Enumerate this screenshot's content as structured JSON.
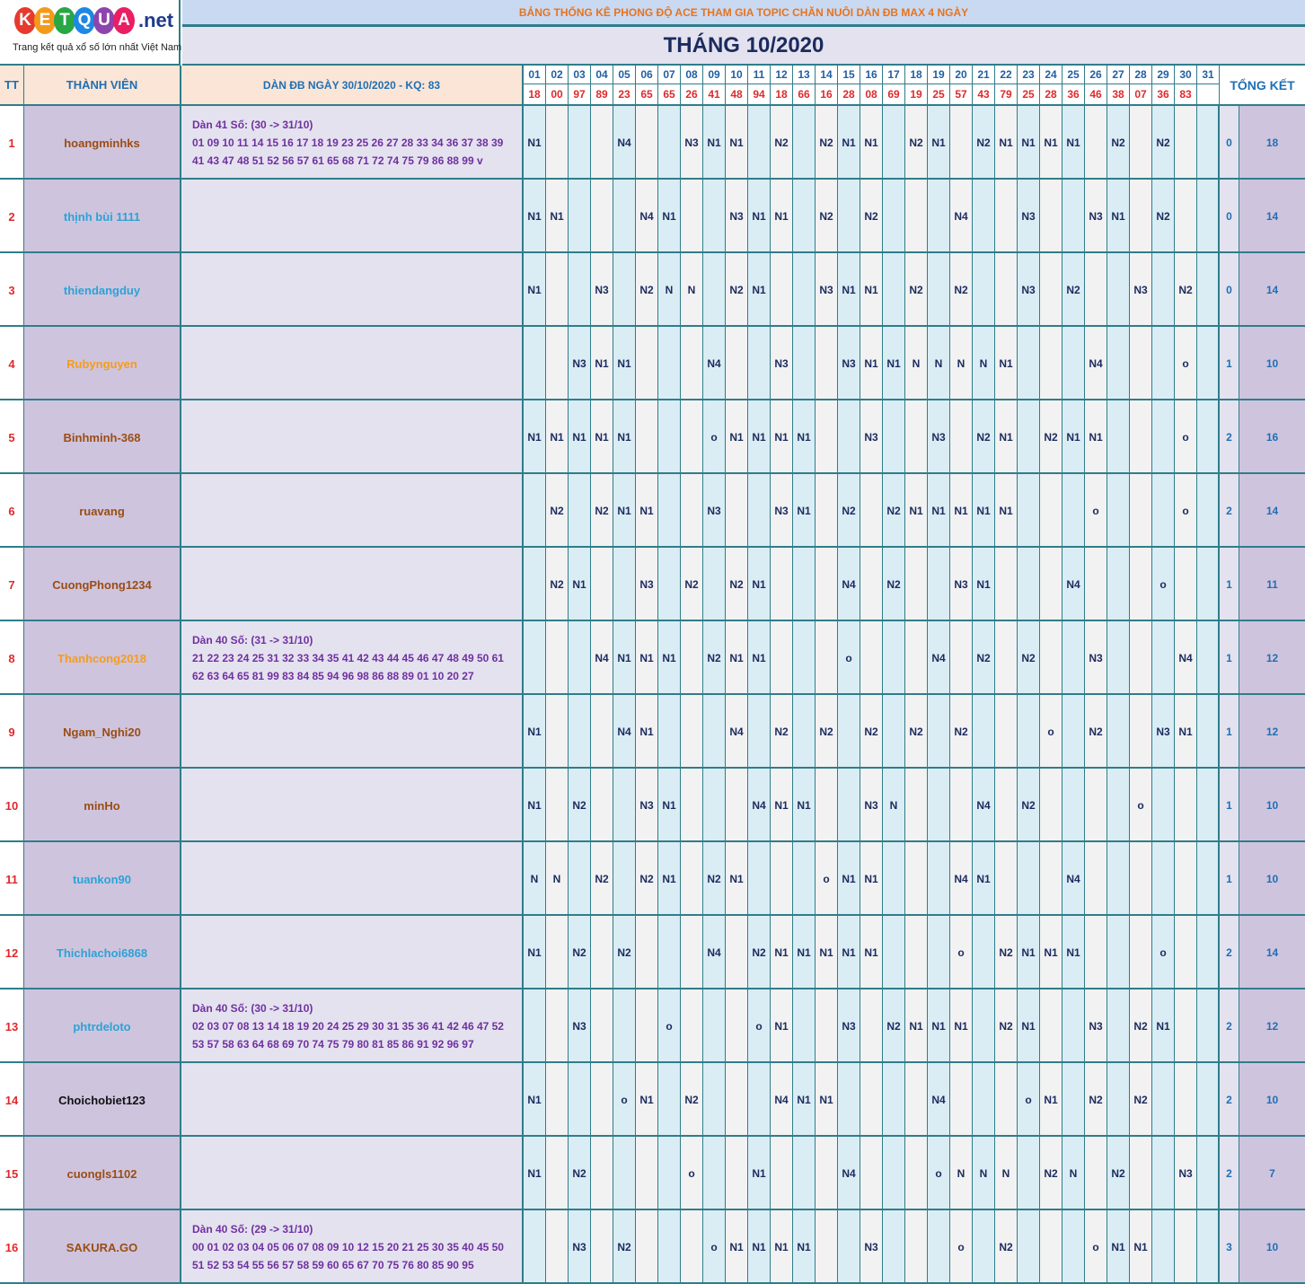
{
  "logo": {
    "letters": [
      "K",
      "E",
      "T",
      "Q",
      "U",
      "A"
    ],
    "letter_colors": [
      "#e63a2e",
      "#f39a1b",
      "#28a745",
      "#1e88e5",
      "#8e44ad",
      "#e91e63"
    ],
    "domain": ".net",
    "tagline": "Trang kết quả xổ số lớn nhất Việt Nam"
  },
  "banner": "BẢNG THỐNG KÊ PHONG ĐỘ ACE THAM GIA TOPIC CHĂN NUÔI DÀN ĐB MAX 4 NGÀY",
  "month_title": "THÁNG 10/2020",
  "headers": {
    "tt": "TT",
    "member": "THÀNH VIÊN",
    "dan": "DÀN ĐB NGÀY 30/10/2020 - KQ: 83",
    "total": "TỔNG KẾT"
  },
  "days": [
    "01",
    "02",
    "03",
    "04",
    "05",
    "06",
    "07",
    "08",
    "09",
    "10",
    "11",
    "12",
    "13",
    "14",
    "15",
    "16",
    "17",
    "18",
    "19",
    "20",
    "21",
    "22",
    "23",
    "24",
    "25",
    "26",
    "27",
    "28",
    "29",
    "30",
    "31"
  ],
  "results": [
    "18",
    "00",
    "97",
    "89",
    "23",
    "65",
    "65",
    "26",
    "41",
    "48",
    "94",
    "18",
    "66",
    "16",
    "28",
    "08",
    "69",
    "19",
    "25",
    "57",
    "43",
    "79",
    "25",
    "28",
    "36",
    "46",
    "38",
    "07",
    "36",
    "83",
    ""
  ],
  "colors": {
    "name_brown": "#9a4d14",
    "name_blue": "#2ba3d6",
    "name_orange": "#f59c1b",
    "name_black": "#111111"
  },
  "rows": [
    {
      "tt": "1",
      "name": "hoangminhks",
      "color": "brown",
      "dan": [
        "Dàn 41 Số: (30 -> 31/10)",
        "01 09 10 11 14 15 16 17 18 19 23 25 26 27 28 33 34 36 37 38 39",
        "41 43 47 48 51 52 56 57 61 65 68 71 72 74 75 79 86 88 99 v"
      ],
      "cells": [
        "N1",
        "",
        "",
        "",
        "N4",
        "",
        "",
        "N3",
        "N1",
        "N1",
        "",
        "N2",
        "",
        "N2",
        "N1",
        "N1",
        "",
        "N2",
        "N1",
        "",
        "N2",
        "N1",
        "N1",
        "N1",
        "N1",
        "",
        "N2",
        "",
        "N2",
        "",
        ""
      ],
      "x": "0",
      "total": "18"
    },
    {
      "tt": "2",
      "name": "thịnh bùi 1111",
      "color": "blue",
      "dan": [],
      "cells": [
        "N1",
        "N1",
        "",
        "",
        "",
        "N4",
        "N1",
        "",
        "",
        "N3",
        "N1",
        "N1",
        "",
        "N2",
        "",
        "N2",
        "",
        "",
        "",
        "N4",
        "",
        "",
        "N3",
        "",
        "",
        "N3",
        "N1",
        "",
        "N2",
        "",
        ""
      ],
      "x": "0",
      "total": "14"
    },
    {
      "tt": "3",
      "name": "thiendangduy",
      "color": "blue",
      "dan": [],
      "cells": [
        "N1",
        "",
        "",
        "N3",
        "",
        "N2",
        "N",
        "N",
        "",
        "N2",
        "N1",
        "",
        "",
        "N3",
        "N1",
        "N1",
        "",
        "N2",
        "",
        "N2",
        "",
        "",
        "N3",
        "",
        "N2",
        "",
        "",
        "N3",
        "",
        "N2",
        ""
      ],
      "x": "0",
      "total": "14"
    },
    {
      "tt": "4",
      "name": "Rubynguyen",
      "color": "orange",
      "dan": [],
      "cells": [
        "",
        "",
        "N3",
        "N1",
        "N1",
        "",
        "",
        "",
        "N4",
        "",
        "",
        "N3",
        "",
        "",
        "N3",
        "N1",
        "N1",
        "N",
        "N",
        "N",
        "N",
        "N1",
        "",
        "",
        "",
        "N4",
        "",
        "",
        "",
        "o",
        ""
      ],
      "x": "1",
      "total": "10"
    },
    {
      "tt": "5",
      "name": "Binhminh-368",
      "color": "brown",
      "dan": [],
      "cells": [
        "N1",
        "N1",
        "N1",
        "N1",
        "N1",
        "",
        "",
        "",
        "o",
        "N1",
        "N1",
        "N1",
        "N1",
        "",
        "",
        "N3",
        "",
        "",
        "N3",
        "",
        "N2",
        "N1",
        "",
        "N2",
        "N1",
        "N1",
        "",
        "",
        "",
        "o",
        ""
      ],
      "x": "2",
      "total": "16"
    },
    {
      "tt": "6",
      "name": "ruavang",
      "color": "brown",
      "dan": [],
      "cells": [
        "",
        "N2",
        "",
        "N2",
        "N1",
        "N1",
        "",
        "",
        "N3",
        "",
        "",
        "N3",
        "N1",
        "",
        "N2",
        "",
        "N2",
        "N1",
        "N1",
        "N1",
        "N1",
        "N1",
        "",
        "",
        "",
        "o",
        "",
        "",
        "",
        "o",
        ""
      ],
      "x": "2",
      "total": "14"
    },
    {
      "tt": "7",
      "name": "CuongPhong1234",
      "color": "brown",
      "dan": [],
      "cells": [
        "",
        "N2",
        "N1",
        "",
        "",
        "N3",
        "",
        "N2",
        "",
        "N2",
        "N1",
        "",
        "",
        "",
        "N4",
        "",
        "N2",
        "",
        "",
        "N3",
        "N1",
        "",
        "",
        "",
        "N4",
        "",
        "",
        "",
        "o",
        "",
        ""
      ],
      "x": "1",
      "total": "11"
    },
    {
      "tt": "8",
      "name": "Thanhcong2018",
      "color": "orange",
      "dan": [
        "Dàn 40 Số: (31 -> 31/10)",
        "21 22 23 24 25 31 32 33 34 35 41 42 43 44 45 46 47 48 49 50 61",
        "62 63 64 65 81 99 83 84 85 94 96 98 86 88 89 01 10 20 27"
      ],
      "cells": [
        "",
        "",
        "",
        "N4",
        "N1",
        "N1",
        "N1",
        "",
        "N2",
        "N1",
        "N1",
        "",
        "",
        "",
        "o",
        "",
        "",
        "",
        "N4",
        "",
        "N2",
        "",
        "N2",
        "",
        "",
        "N3",
        "",
        "",
        "",
        "N4",
        ""
      ],
      "x": "1",
      "total": "12"
    },
    {
      "tt": "9",
      "name": "Ngam_Nghi20",
      "color": "brown",
      "dan": [],
      "cells": [
        "N1",
        "",
        "",
        "",
        "N4",
        "N1",
        "",
        "",
        "",
        "N4",
        "",
        "N2",
        "",
        "N2",
        "",
        "N2",
        "",
        "N2",
        "",
        "N2",
        "",
        "",
        "",
        "o",
        "",
        "N2",
        "",
        "",
        "N3",
        "N1",
        ""
      ],
      "x": "1",
      "total": "12"
    },
    {
      "tt": "10",
      "name": "minHo",
      "color": "brown",
      "dan": [],
      "cells": [
        "N1",
        "",
        "N2",
        "",
        "",
        "N3",
        "N1",
        "",
        "",
        "",
        "N4",
        "N1",
        "N1",
        "",
        "",
        "N3",
        "N",
        "",
        "",
        "",
        "N4",
        "",
        "N2",
        "",
        "",
        "",
        "",
        "o",
        "",
        "",
        ""
      ],
      "x": "1",
      "total": "10"
    },
    {
      "tt": "11",
      "name": "tuankon90",
      "color": "blue",
      "dan": [],
      "cells": [
        "N",
        "N",
        "",
        "N2",
        "",
        "N2",
        "N1",
        "",
        "N2",
        "N1",
        "",
        "",
        "",
        "o",
        "N1",
        "N1",
        "",
        "",
        "",
        "N4",
        "N1",
        "",
        "",
        "",
        "N4",
        "",
        "",
        "",
        "",
        "",
        ""
      ],
      "x": "1",
      "total": "10"
    },
    {
      "tt": "12",
      "name": "Thichlachoi6868",
      "color": "blue",
      "dan": [],
      "cells": [
        "N1",
        "",
        "N2",
        "",
        "N2",
        "",
        "",
        "",
        "N4",
        "",
        "N2",
        "N1",
        "N1",
        "N1",
        "N1",
        "N1",
        "",
        "",
        "",
        "o",
        "",
        "N2",
        "N1",
        "N1",
        "N1",
        "",
        "",
        "",
        "o",
        "",
        ""
      ],
      "x": "2",
      "total": "14"
    },
    {
      "tt": "13",
      "name": "phtrdeloto",
      "color": "blue",
      "dan": [
        "Dàn 40 Số: (30 -> 31/10)",
        "02 03 07 08 13 14 18 19 20 24 25 29 30 31 35 36 41 42 46 47 52",
        "53 57 58 63 64 68 69 70 74 75 79 80 81 85 86 91 92 96 97"
      ],
      "cells": [
        "",
        "",
        "N3",
        "",
        "",
        "",
        "o",
        "",
        "",
        "",
        "o",
        "N1",
        "",
        "",
        "N3",
        "",
        "N2",
        "N1",
        "N1",
        "N1",
        "",
        "N2",
        "N1",
        "",
        "",
        "N3",
        "",
        "N2",
        "N1",
        "",
        ""
      ],
      "x": "2",
      "total": "12"
    },
    {
      "tt": "14",
      "name": "Choichobiet123",
      "color": "black",
      "dan": [],
      "cells": [
        "N1",
        "",
        "",
        "",
        "o",
        "N1",
        "",
        "N2",
        "",
        "",
        "",
        "N4",
        "N1",
        "N1",
        "",
        "",
        "",
        "",
        "N4",
        "",
        "",
        "",
        "o",
        "N1",
        "",
        "N2",
        "",
        "N2",
        "",
        "",
        ""
      ],
      "x": "2",
      "total": "10"
    },
    {
      "tt": "15",
      "name": "cuongls1102",
      "color": "brown",
      "dan": [],
      "cells": [
        "N1",
        "",
        "N2",
        "",
        "",
        "",
        "",
        "o",
        "",
        "",
        "N1",
        "",
        "",
        "",
        "N4",
        "",
        "",
        "",
        "o",
        "N",
        "N",
        "N",
        "",
        "N2",
        "N",
        "",
        "N2",
        "",
        "",
        "N3",
        ""
      ],
      "x": "2",
      "total": "7"
    },
    {
      "tt": "16",
      "name": "SAKURA.GO",
      "color": "brown",
      "dan": [
        "Dàn 40 Số: (29 -> 31/10)",
        "00 01 02 03 04 05 06 07 08 09 10 12 15 20 21 25 30 35 40 45 50",
        "51 52 53 54 55 56 57 58 59 60 65 67 70 75 76 80 85 90 95"
      ],
      "cells": [
        "",
        "",
        "N3",
        "",
        "N2",
        "",
        "",
        "",
        "o",
        "N1",
        "N1",
        "N1",
        "N1",
        "",
        "",
        "N3",
        "",
        "",
        "",
        "o",
        "",
        "N2",
        "",
        "",
        "",
        "o",
        "N1",
        "N1",
        "",
        "",
        ""
      ],
      "x": "3",
      "total": "10"
    }
  ]
}
